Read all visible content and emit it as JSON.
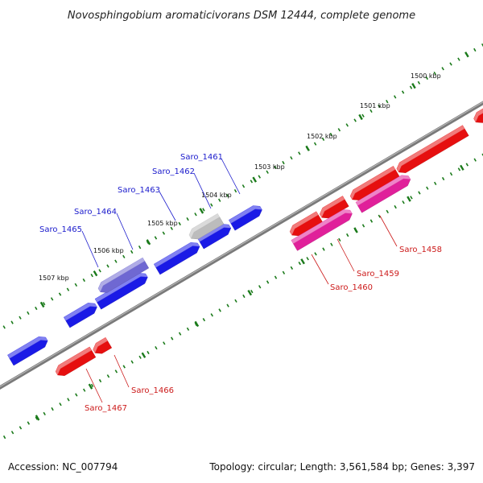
{
  "title": "Novosphingobium aromaticivorans DSM 12444, complete genome",
  "footer": {
    "accession": "Accession: NC_007794",
    "summary": "Topology: circular; Length: 3,561,584 bp; Genes: 3,397"
  },
  "colors": {
    "forward_gene": "#1a1ae6",
    "reverse_gene": "#e60f0f",
    "forward_pale": "#6f68d2",
    "reverse_pink": "#e0209a",
    "neutral_gene": "#bcbcbc",
    "backbone": "#7a7a7a",
    "ticks": "#1a7a1a",
    "forward_label": "#1a1acc",
    "reverse_label": "#cc1a1a"
  },
  "kbp_markers": [
    "1500 kbp",
    "1501 kbp",
    "1502 kbp",
    "1503 kbp",
    "1504 kbp",
    "1505 kbp",
    "1506 kbp",
    "1507 kbp"
  ],
  "gene_labels": {
    "forward": [
      "Saro_1461",
      "Saro_1462",
      "Saro_1463",
      "Saro_1464",
      "Saro_1465"
    ],
    "reverse": [
      "Saro_1458",
      "Saro_1459",
      "Saro_1460",
      "Saro_1466",
      "Saro_1467"
    ]
  }
}
